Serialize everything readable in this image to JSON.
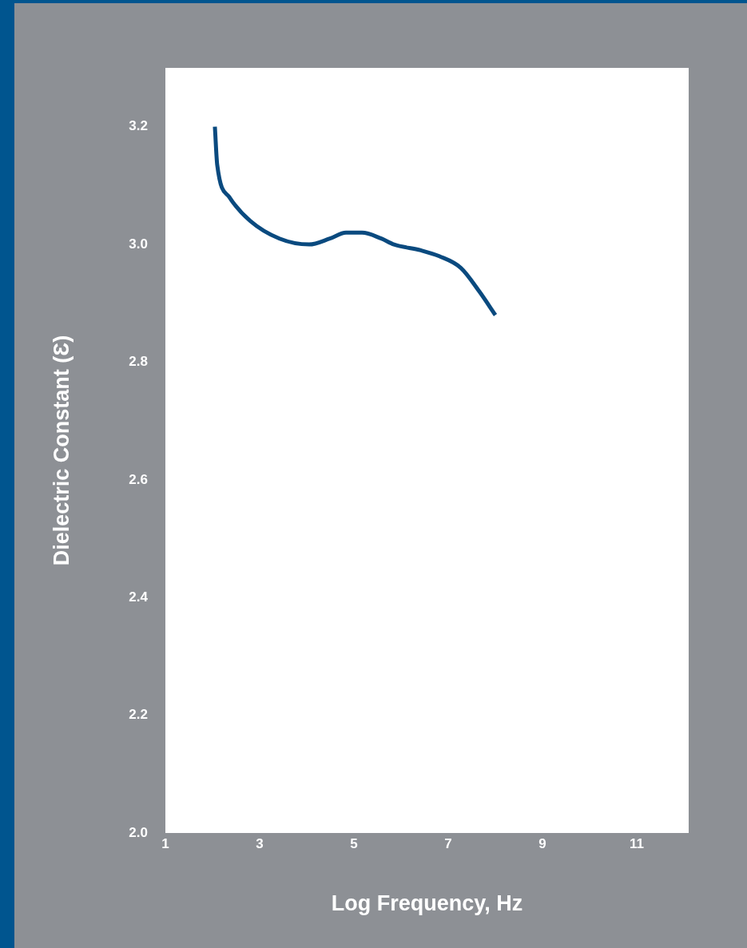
{
  "chart_data": {
    "type": "line",
    "xlabel": "Log Frequency, Hz",
    "ylabel": "Dielectric Constant (Ɛ)",
    "x": [
      2.05,
      2.1,
      2.36,
      2.8,
      3.42,
      4.05,
      4.49,
      4.83,
      5.17,
      5.58,
      5.85,
      6.42,
      6.81,
      7.27,
      7.66,
      8.0
    ],
    "series": [
      {
        "color": "#0a4a7f",
        "values": [
          3.2,
          3.135,
          3.08,
          3.04,
          3.01,
          3.0,
          3.01,
          3.02,
          3.02,
          3.01,
          3.0,
          2.99,
          2.98,
          2.96,
          2.92,
          2.88
        ]
      }
    ],
    "xlim": [
      1,
      12.1
    ],
    "xticks": [
      1,
      3,
      5,
      7,
      9,
      11
    ],
    "ylim": [
      2.0,
      3.3
    ],
    "yticks": [
      {
        "value": 2.0,
        "label": "2.0"
      },
      {
        "value": 2.2,
        "label": "2.2"
      },
      {
        "value": 2.4,
        "label": "2.4"
      },
      {
        "value": 2.6,
        "label": "2.6"
      },
      {
        "value": 2.8,
        "label": "2.8"
      },
      {
        "value": 3.0,
        "label": "3.0"
      },
      {
        "value": 3.2,
        "label": "3.2"
      }
    ],
    "grid": false,
    "legend": false,
    "marker": "none",
    "line_style": "solid"
  }
}
